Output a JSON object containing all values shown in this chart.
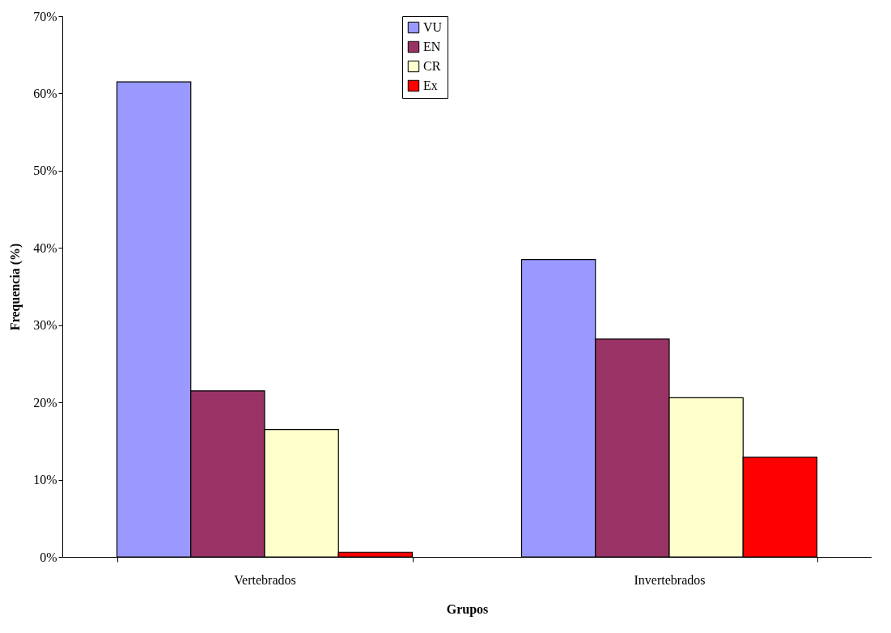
{
  "chart_data": {
    "type": "bar",
    "xlabel": "Grupos",
    "ylabel": "Frequencia (%)",
    "categories": [
      "Vertebrados",
      "Invertebrados"
    ],
    "series": [
      {
        "name": "VU",
        "color": "#9999ff",
        "values": [
          61.5,
          38.5
        ]
      },
      {
        "name": "EN",
        "color": "#993366",
        "values": [
          21.5,
          28.2
        ]
      },
      {
        "name": "CR",
        "color": "#ffffcc",
        "values": [
          16.5,
          20.6
        ]
      },
      {
        "name": "Ex",
        "color": "#ff0000",
        "values": [
          0.6,
          12.9
        ]
      }
    ],
    "ylim": [
      0,
      70
    ],
    "yticks": [
      {
        "value": 0,
        "label": "0%"
      },
      {
        "value": 10,
        "label": "10%"
      },
      {
        "value": 20,
        "label": "20%"
      },
      {
        "value": 30,
        "label": "30%"
      },
      {
        "value": 40,
        "label": "40%"
      },
      {
        "value": 50,
        "label": "50%"
      },
      {
        "value": 60,
        "label": "60%"
      },
      {
        "value": 70,
        "label": "70%"
      }
    ],
    "grid": false,
    "legend": "top"
  }
}
